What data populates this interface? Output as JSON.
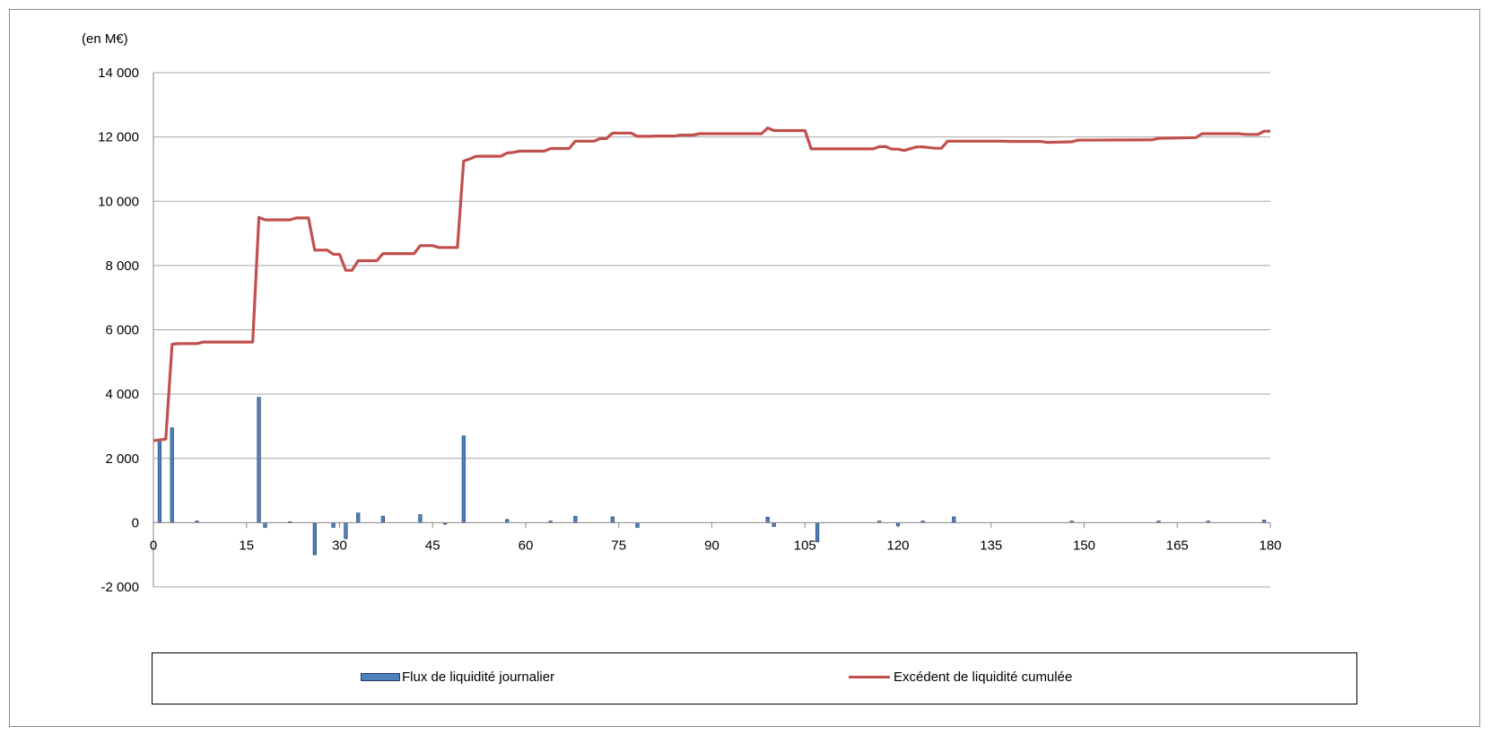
{
  "chart_data": {
    "type": "bar+line",
    "unit_label": "(en M€)",
    "ylim": [
      -2000,
      14000
    ],
    "yticks": [
      14000,
      12000,
      10000,
      8000,
      6000,
      4000,
      2000,
      0,
      -2000
    ],
    "ytick_labels": [
      "14 000",
      "12 000",
      "10 000",
      "8 000",
      "6 000",
      "4 000",
      "2 000",
      "0",
      "-2 000"
    ],
    "xlim": [
      0,
      180
    ],
    "xticks": [
      0,
      15,
      30,
      45,
      60,
      75,
      90,
      105,
      120,
      135,
      150,
      165,
      180
    ],
    "xtick_labels": [
      "0",
      "15",
      "30",
      "45",
      "60",
      "75",
      "90",
      "105",
      "120",
      "135",
      "150",
      "165",
      "180"
    ],
    "grid": true,
    "legend_position": "bottom",
    "colors": {
      "bars": "#4f81bd",
      "bar_edge": "#1f3a5f",
      "line": "#c0504d",
      "grid": "#a6a6a6"
    },
    "series": [
      {
        "name": "Flux de liquidité journalier",
        "kind": "bar",
        "x": [
          1,
          3,
          7,
          17,
          18,
          22,
          26,
          29,
          31,
          33,
          37,
          43,
          47,
          50,
          57,
          64,
          68,
          74,
          78,
          99,
          100,
          107,
          117,
          120,
          124,
          129,
          148,
          162,
          170,
          179
        ],
        "values": [
          2600,
          2950,
          50,
          3900,
          -150,
          30,
          -1000,
          -150,
          -500,
          300,
          200,
          250,
          -50,
          2700,
          100,
          50,
          200,
          180,
          -150,
          170,
          -120,
          -600,
          50,
          -100,
          50,
          180,
          50,
          50,
          50,
          80
        ]
      },
      {
        "name": "Excédent de liquidité cumulée",
        "kind": "line",
        "x": [
          0,
          2,
          3,
          4,
          7,
          8,
          16,
          17,
          18,
          22,
          23,
          25,
          26,
          28,
          29,
          30,
          31,
          32,
          33,
          36,
          37,
          42,
          43,
          45,
          46,
          48,
          49,
          50,
          51,
          52,
          56,
          57,
          58,
          59,
          63,
          64,
          67,
          68,
          71,
          72,
          73,
          74,
          77,
          78,
          80,
          81,
          84,
          85,
          87,
          88,
          98,
          99,
          100,
          105,
          106,
          116,
          117,
          118,
          119,
          120,
          121,
          123,
          124,
          126,
          127,
          128,
          137,
          138,
          143,
          144,
          148,
          149,
          161,
          162,
          168,
          169,
          175,
          176,
          178,
          179,
          180
        ],
        "values": [
          2550,
          2600,
          5550,
          5570,
          5570,
          5620,
          5620,
          9500,
          9420,
          9420,
          9480,
          9480,
          8480,
          8480,
          8350,
          8350,
          7850,
          7850,
          8150,
          8150,
          8370,
          8370,
          8620,
          8620,
          8560,
          8560,
          8560,
          11250,
          11320,
          11400,
          11400,
          11500,
          11520,
          11560,
          11560,
          11640,
          11640,
          11870,
          11870,
          11950,
          11950,
          12120,
          12120,
          12020,
          12020,
          12030,
          12030,
          12060,
          12060,
          12100,
          12100,
          12280,
          12200,
          12200,
          11630,
          11630,
          11700,
          11700,
          11620,
          11620,
          11580,
          11690,
          11690,
          11650,
          11650,
          11870,
          11870,
          11860,
          11860,
          11830,
          11850,
          11900,
          11910,
          11960,
          11980,
          12100,
          12100,
          12080,
          12080,
          12180,
          12180
        ]
      }
    ]
  }
}
